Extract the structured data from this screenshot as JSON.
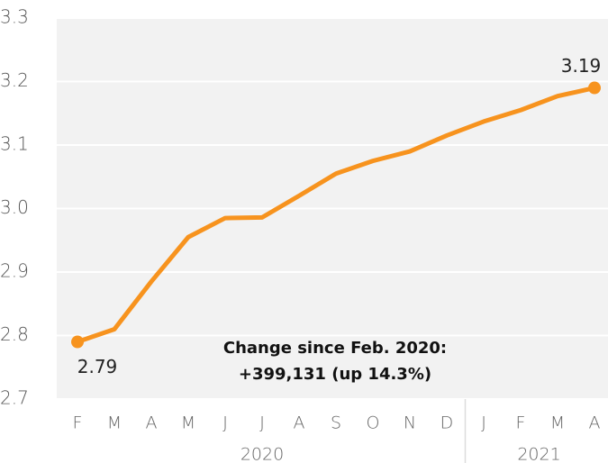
{
  "chart_data": {
    "type": "line",
    "categories": [
      "F",
      "M",
      "A",
      "M",
      "J",
      "J",
      "A",
      "S",
      "O",
      "N",
      "D",
      "J",
      "F",
      "M",
      "A"
    ],
    "category_groups": [
      {
        "label": "2020",
        "count": 11
      },
      {
        "label": "2021",
        "count": 4
      }
    ],
    "values": [
      2.79,
      2.81,
      2.885,
      2.955,
      2.985,
      2.986,
      3.02,
      3.055,
      3.075,
      3.09,
      3.115,
      3.137,
      3.155,
      3.177,
      3.19
    ],
    "value_labels": [
      "2.79",
      null,
      null,
      null,
      null,
      null,
      null,
      null,
      null,
      null,
      null,
      null,
      null,
      null,
      "3.19"
    ],
    "color": "#f7931e",
    "ylim": [
      2.7,
      3.3
    ],
    "yticks": [
      2.7,
      2.8,
      2.9,
      {
        "value": 3,
        "label": "3.0"
      },
      3.1,
      3.2,
      3.3
    ],
    "grid": true,
    "annotation": [
      "Change since Feb. 2020:",
      "+399,131 (up 14.3%)"
    ]
  }
}
